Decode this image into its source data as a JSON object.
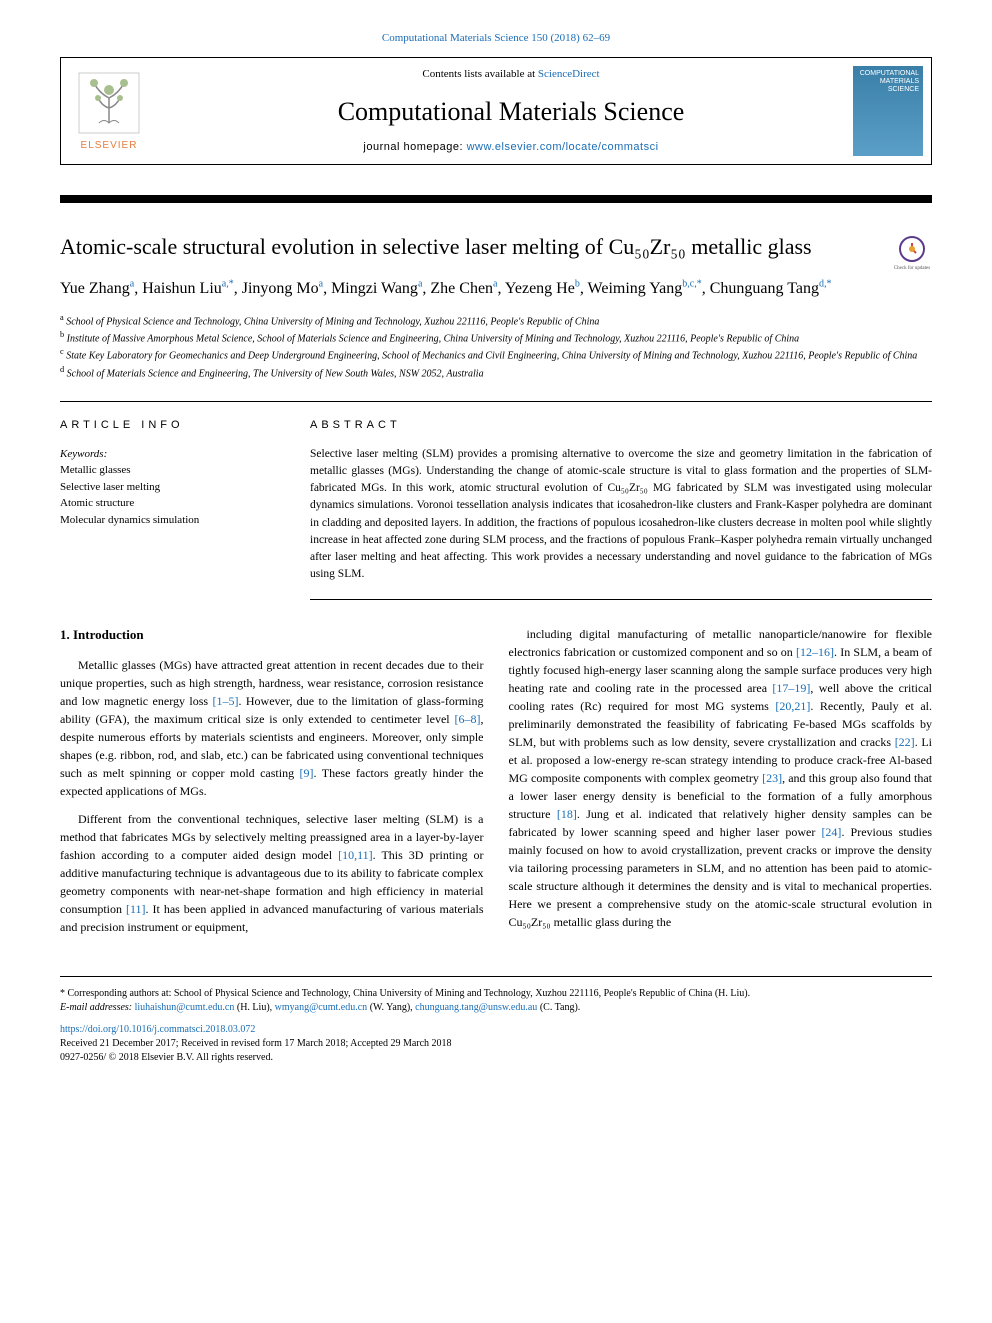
{
  "top_citation": "Computational Materials Science 150 (2018) 62–69",
  "header": {
    "contents_prefix": "Contents lists available at ",
    "contents_link": "ScienceDirect",
    "journal_title": "Computational Materials Science",
    "homepage_prefix": "journal homepage: ",
    "homepage_link": "www.elsevier.com/locate/commatsci",
    "cover_text": "COMPUTATIONAL MATERIALS SCIENCE",
    "elsevier": "ELSEVIER"
  },
  "article": {
    "title_html": "Atomic-scale structural evolution in selective laser melting of Cu₅₀Zr₅₀ metallic glass",
    "check_updates": "Check for updates"
  },
  "authors": [
    {
      "name": "Yue Zhang",
      "aff": "a"
    },
    {
      "name": "Haishun Liu",
      "aff": "a,*"
    },
    {
      "name": "Jinyong Mo",
      "aff": "a"
    },
    {
      "name": "Mingzi Wang",
      "aff": "a"
    },
    {
      "name": "Zhe Chen",
      "aff": "a"
    },
    {
      "name": "Yezeng He",
      "aff": "b"
    },
    {
      "name": "Weiming Yang",
      "aff": "b,c,*"
    },
    {
      "name": "Chunguang Tang",
      "aff": "d,*"
    }
  ],
  "affiliations": [
    {
      "sup": "a",
      "text": "School of Physical Science and Technology, China University of Mining and Technology, Xuzhou 221116, People's Republic of China"
    },
    {
      "sup": "b",
      "text": "Institute of Massive Amorphous Metal Science, School of Materials Science and Engineering, China University of Mining and Technology, Xuzhou 221116, People's Republic of China"
    },
    {
      "sup": "c",
      "text": "State Key Laboratory for Geomechanics and Deep Underground Engineering, School of Mechanics and Civil Engineering, China University of Mining and Technology, Xuzhou 221116, People's Republic of China"
    },
    {
      "sup": "d",
      "text": "School of Materials Science and Engineering, The University of New South Wales, NSW 2052, Australia"
    }
  ],
  "article_info": {
    "header": "ARTICLE INFO",
    "keywords_label": "Keywords:",
    "keywords": [
      "Metallic glasses",
      "Selective laser melting",
      "Atomic structure",
      "Molecular dynamics simulation"
    ]
  },
  "abstract": {
    "header": "ABSTRACT",
    "text": "Selective laser melting (SLM) provides a promising alternative to overcome the size and geometry limitation in the fabrication of metallic glasses (MGs). Understanding the change of atomic-scale structure is vital to glass formation and the properties of SLM-fabricated MGs. In this work, atomic structural evolution of Cu₅₀Zr₅₀ MG fabricated by SLM was investigated using molecular dynamics simulations. Voronoi tessellation analysis indicates that icosahedron-like clusters and Frank-Kasper polyhedra are dominant in cladding and deposited layers. In addition, the fractions of populous icosahedron-like clusters decrease in molten pool while slightly increase in heat affected zone during SLM process, and the fractions of populous Frank–Kasper polyhedra remain virtually unchanged after laser melting and heat affecting. This work provides a necessary understanding and novel guidance to the fabrication of MGs using SLM."
  },
  "body": {
    "section_title": "1. Introduction",
    "left_col": [
      {
        "text": "Metallic glasses (MGs) have attracted great attention in recent decades due to their unique properties, such as high strength, hardness, wear resistance, corrosion resistance and low magnetic energy loss ",
        "ref": "[1–5]",
        "text2": ". However, due to the limitation of glass-forming ability (GFA), the maximum critical size is only extended to centimeter level ",
        "ref2": "[6–8]",
        "text3": ", despite numerous efforts by materials scientists and engineers. Moreover, only simple shapes (e.g. ribbon, rod, and slab, etc.) can be fabricated using conventional techniques such as melt spinning or copper mold casting ",
        "ref3": "[9]",
        "text4": ". These factors greatly hinder the expected applications of MGs."
      },
      {
        "text": "Different from the conventional techniques, selective laser melting (SLM) is a method that fabricates MGs by selectively melting preassigned area in a layer-by-layer fashion according to a computer aided design model ",
        "ref": "[10,11]",
        "text2": ". This 3D printing or additive manufacturing technique is advantageous due to its ability to fabricate complex geometry components with near-net-shape formation and high efficiency in material consumption ",
        "ref2": "[11]",
        "text3": ". It has been applied in advanced manufacturing of various materials and precision instrument or equipment,"
      }
    ],
    "right_col": [
      {
        "text": "including digital manufacturing of metallic nanoparticle/nanowire for flexible electronics fabrication or customized component and so on ",
        "ref": "[12–16]",
        "text2": ". In SLM, a beam of tightly focused high-energy laser scanning along the sample surface produces very high heating rate and cooling rate in the processed area ",
        "ref2": "[17–19]",
        "text3": ", well above the critical cooling rates (Rc) required for most MG systems ",
        "ref3": "[20,21]",
        "text4": ". Recently, Pauly et al. preliminarily demonstrated the feasibility of fabricating Fe-based MGs scaffolds by SLM, but with problems such as low density, severe crystallization and cracks ",
        "ref4": "[22]",
        "text5": ". Li et al. proposed a low-energy re-scan strategy intending to produce crack-free Al-based MG composite components with complex geometry ",
        "ref5": "[23]",
        "text6": ", and this group also found that a lower laser energy density is beneficial to the formation of a fully amorphous structure ",
        "ref6": "[18]",
        "text7": ". Jung et al. indicated that relatively higher density samples can be fabricated by lower scanning speed and higher laser power ",
        "ref7": "[24]",
        "text8": ". Previous studies mainly focused on how to avoid crystallization, prevent cracks or improve the density via tailoring processing parameters in SLM, and no attention has been paid to atomic-scale structure although it determines the density and is vital to mechanical properties. Here we present a comprehensive study on the atomic-scale structural evolution in Cu₅₀Zr₅₀ metallic glass during the"
      }
    ]
  },
  "footer": {
    "corresponding": "* Corresponding authors at: School of Physical Science and Technology, China University of Mining and Technology, Xuzhou 221116, People's Republic of China (H. Liu).",
    "email_label": "E-mail addresses: ",
    "emails": [
      {
        "addr": "liuhaishun@cumt.edu.cn",
        "who": "(H. Liu)"
      },
      {
        "addr": "wmyang@cumt.edu.cn",
        "who": "(W. Yang)"
      },
      {
        "addr": "chunguang.tang@unsw.edu.au",
        "who": "(C. Tang)"
      }
    ],
    "doi": "https://doi.org/10.1016/j.commatsci.2018.03.072",
    "received": "Received 21 December 2017; Received in revised form 17 March 2018; Accepted 29 March 2018",
    "copyright": "0927-0256/ © 2018 Elsevier B.V. All rights reserved."
  },
  "colors": {
    "link": "#1a6db5",
    "elsevier_orange": "#e77c3c",
    "cover_bg_top": "#3a7fa8",
    "cover_bg_bottom": "#5a9fc8"
  }
}
